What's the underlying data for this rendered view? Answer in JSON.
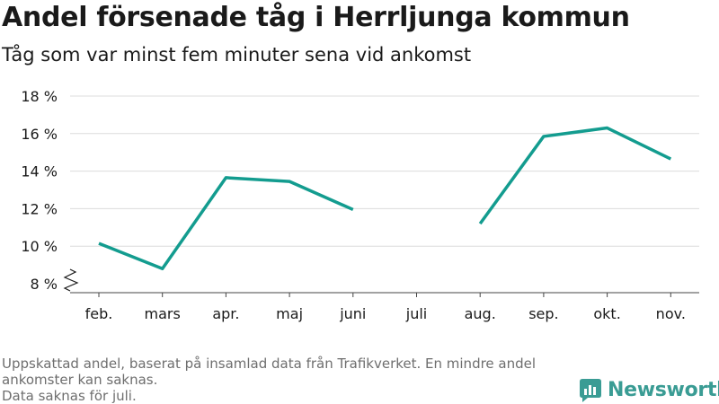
{
  "title": "Andel försenade tåg i Herrljunga kommun",
  "subtitle": "Tåg som var minst fem minuter sena vid ankomst",
  "footnote": {
    "line1": "Uppskattad andel, baserat på insamlad data från Trafikverket. En mindre andel ankomster kan saknas.",
    "line2": "Data saknas för juli."
  },
  "brand": {
    "name": "Newsworthy",
    "icon": "newsworthy-logo-icon",
    "color": "#3a9c94"
  },
  "chart_data": {
    "type": "line",
    "categories": [
      "feb.",
      "mars",
      "apr.",
      "maj",
      "juni",
      "juli",
      "aug.",
      "sep.",
      "okt.",
      "nov."
    ],
    "series": [
      {
        "values": [
          10.15,
          8.8,
          13.65,
          13.45,
          11.95,
          null,
          11.2,
          15.85,
          16.3,
          14.65
        ],
        "color": "#139c8f"
      }
    ],
    "yticks": [
      8,
      10,
      12,
      14,
      16,
      18
    ],
    "ytick_labels": [
      "8 %",
      "10 %",
      "12 %",
      "14 %",
      "16 %",
      "18 %"
    ],
    "ylim": [
      8,
      18
    ],
    "y_axis_break": true,
    "grid": true,
    "legend": false
  }
}
